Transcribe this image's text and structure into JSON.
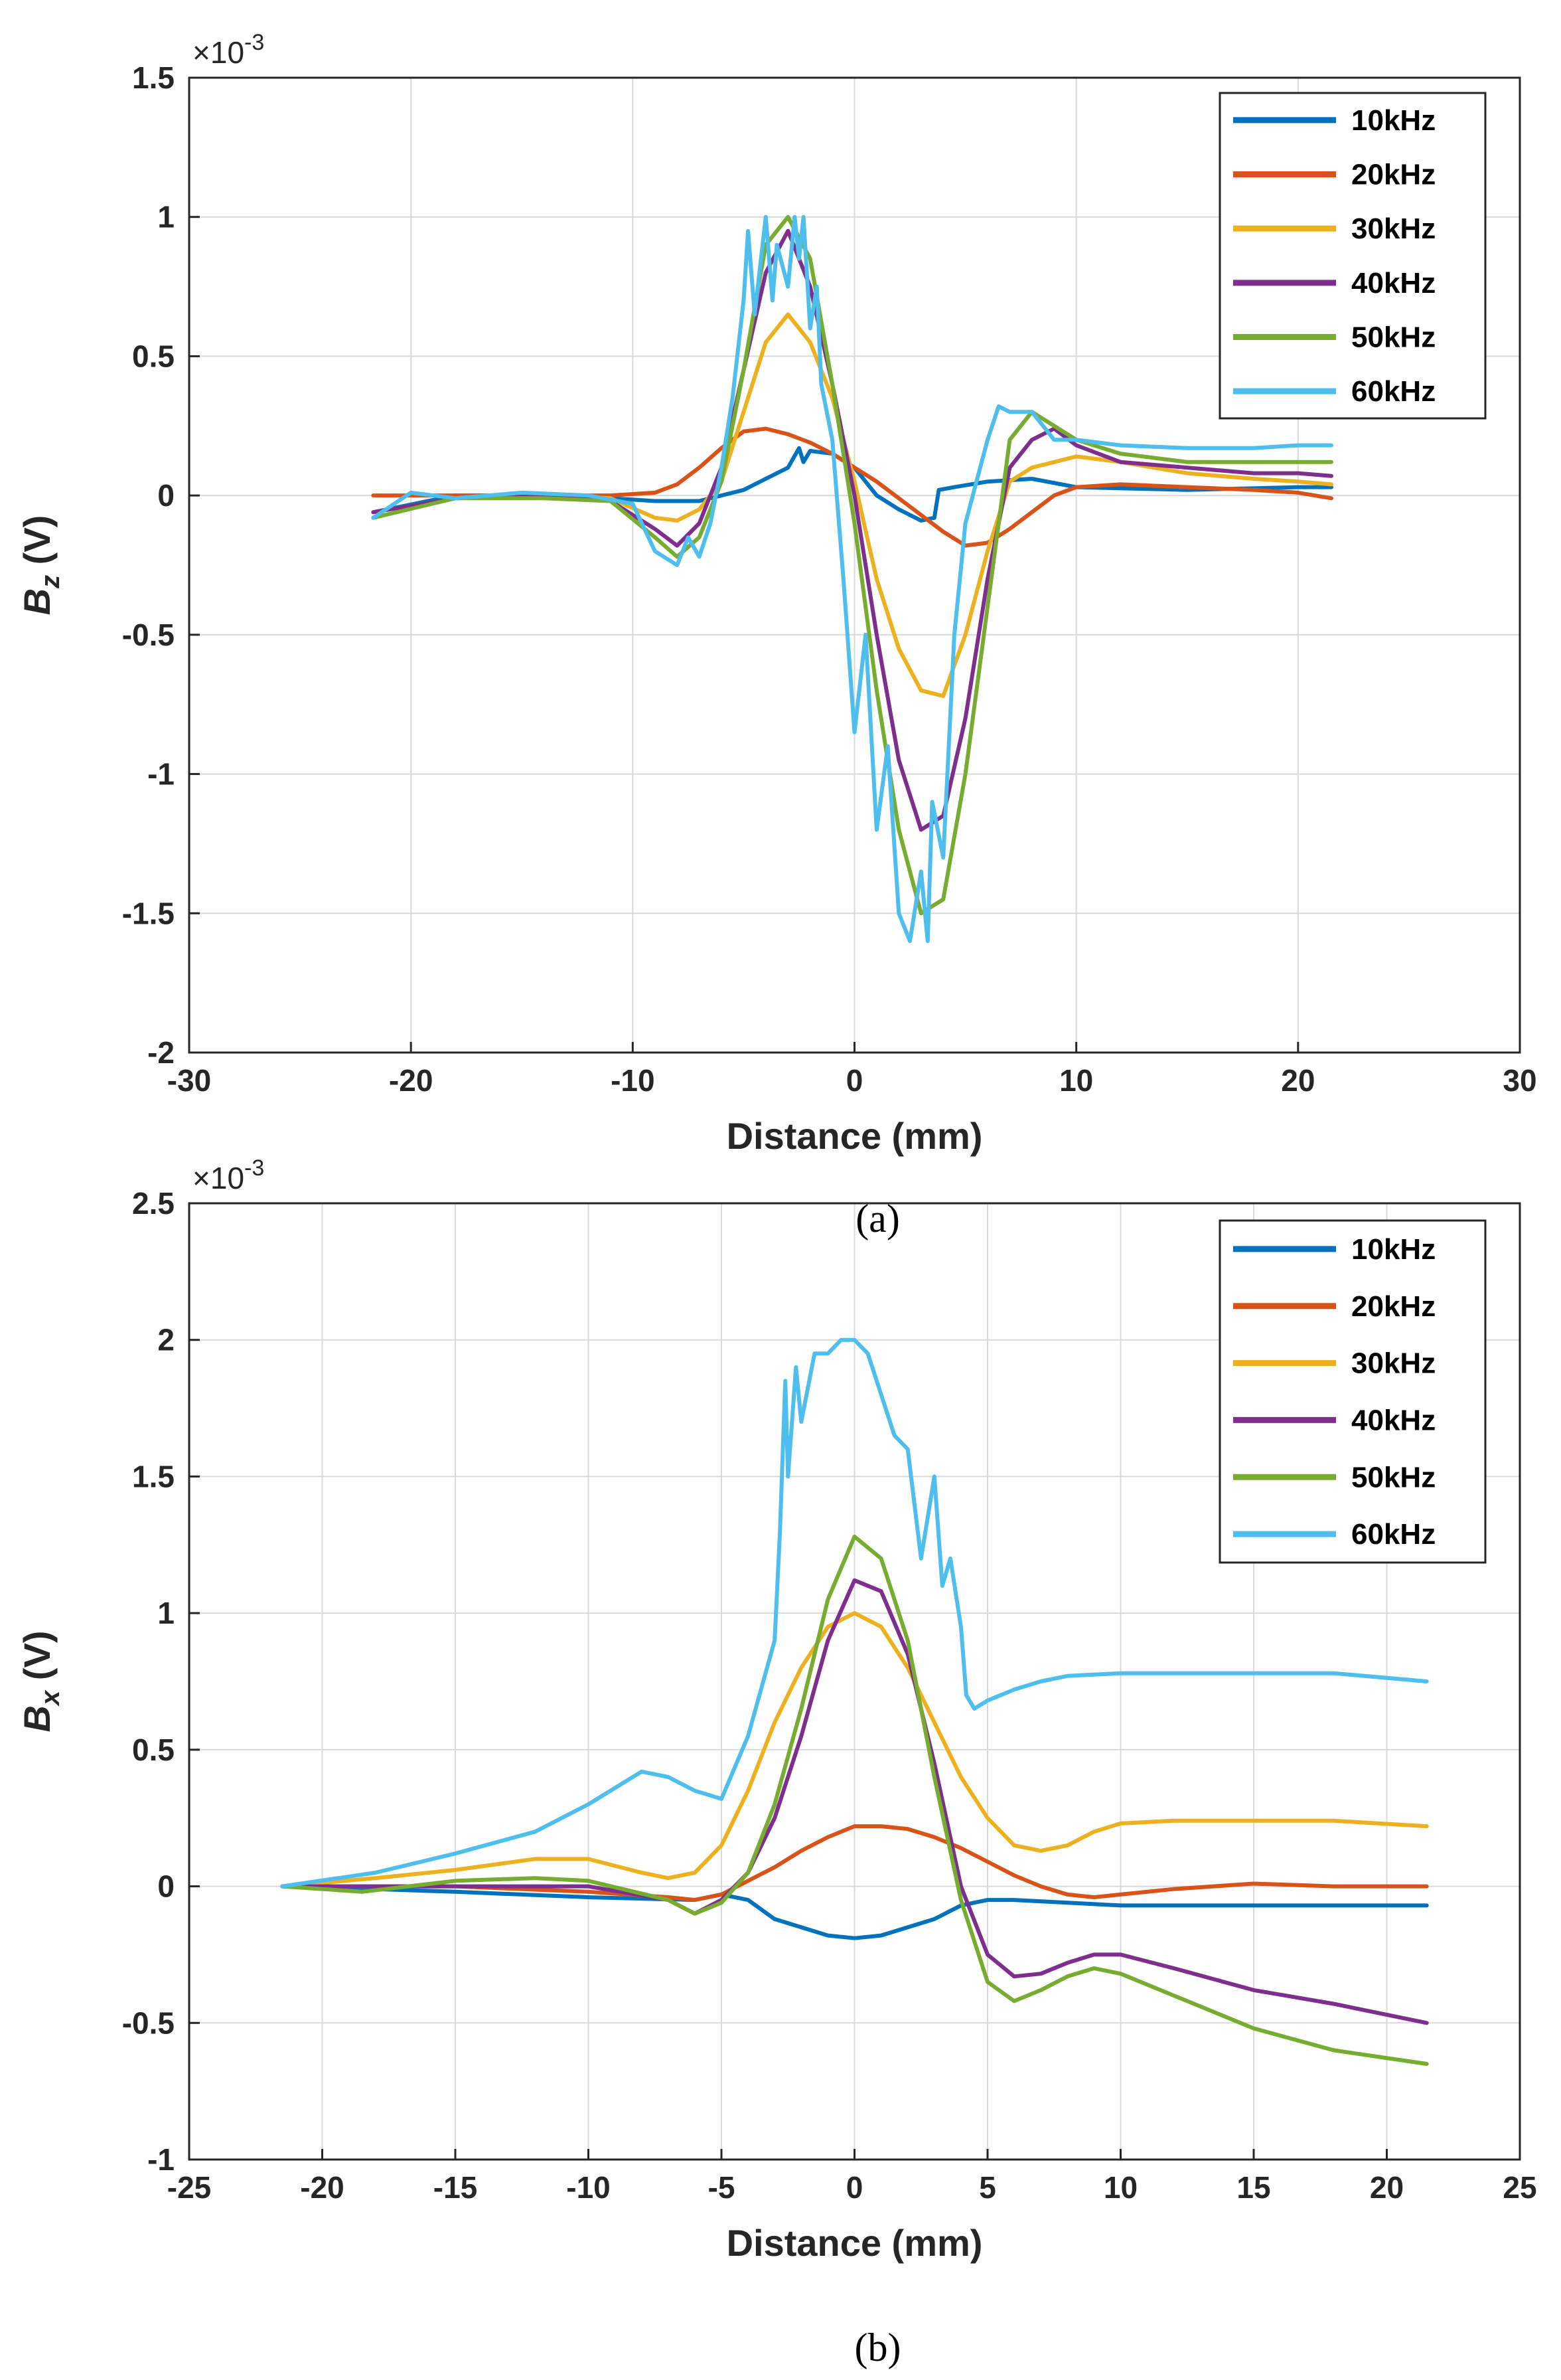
{
  "chart_data": [
    {
      "type": "line",
      "panel_caption": "(a)",
      "xlabel": "Distance (mm)",
      "ylabel_main": "B",
      "ylabel_sub": "z",
      "ylabel_unit": " (V)",
      "exponent_label": "×10",
      "exponent_power": "-3",
      "xlim": [
        -30,
        30
      ],
      "ylim": [
        -2,
        1.5
      ],
      "xticks": [
        -30,
        -20,
        -10,
        0,
        10,
        20,
        30
      ],
      "yticks": [
        -2,
        -1.5,
        -1,
        -0.5,
        0,
        0.5,
        1,
        1.5
      ],
      "xtick_labels": [
        "-30",
        "-20",
        "-10",
        "0",
        "10",
        "20",
        "30"
      ],
      "ytick_labels": [
        "-2",
        "-1.5",
        "-1",
        "-0.5",
        "0",
        "0.5",
        "1",
        "1.5"
      ],
      "grid": true,
      "legend_position": "top-right",
      "series": [
        {
          "name": "10kHz",
          "color": "#0072BD",
          "x": [
            -21.7,
            -18,
            -14,
            -11,
            -9,
            -7,
            -5,
            -3,
            -2.5,
            -2.3,
            -2,
            -1,
            0,
            1,
            2,
            3,
            3.6,
            3.8,
            4.5,
            6,
            8,
            10,
            15,
            20,
            21.5
          ],
          "y": [
            -0.06,
            0,
            0,
            -0.01,
            -0.02,
            -0.02,
            0.02,
            0.1,
            0.17,
            0.12,
            0.16,
            0.15,
            0.1,
            0,
            -0.05,
            -0.09,
            -0.08,
            0.02,
            0.03,
            0.05,
            0.06,
            0.03,
            0.02,
            0.03,
            0.03
          ]
        },
        {
          "name": "20kHz",
          "color": "#D95319",
          "x": [
            -21.7,
            -18,
            -14,
            -11,
            -9,
            -8,
            -7,
            -6,
            -5,
            -4,
            -3,
            -2,
            -1,
            0,
            1,
            2,
            3,
            4,
            5,
            6,
            7,
            8,
            9,
            10,
            12,
            15,
            18,
            20,
            21.5
          ],
          "y": [
            0,
            0,
            0,
            0,
            0.01,
            0.04,
            0.1,
            0.17,
            0.23,
            0.24,
            0.22,
            0.19,
            0.15,
            0.1,
            0.05,
            -0.01,
            -0.07,
            -0.13,
            -0.18,
            -0.17,
            -0.12,
            -0.06,
            0,
            0.03,
            0.04,
            0.03,
            0.02,
            0.01,
            -0.01
          ]
        },
        {
          "name": "30kHz",
          "color": "#EDB120",
          "x": [
            -21.7,
            -18,
            -14,
            -11,
            -9,
            -8,
            -7,
            -6,
            -5,
            -4,
            -3,
            -2,
            -1,
            0,
            1,
            2,
            3,
            4,
            5,
            6,
            7,
            8,
            9,
            10,
            12,
            15,
            18,
            20,
            21.5
          ],
          "y": [
            -0.06,
            -0.01,
            0,
            -0.01,
            -0.08,
            -0.09,
            -0.05,
            0.05,
            0.3,
            0.55,
            0.65,
            0.55,
            0.35,
            0.05,
            -0.3,
            -0.55,
            -0.7,
            -0.72,
            -0.5,
            -0.2,
            0.05,
            0.1,
            0.12,
            0.14,
            0.12,
            0.08,
            0.06,
            0.05,
            0.04
          ]
        },
        {
          "name": "40kHz",
          "color": "#7E2F8E",
          "x": [
            -21.7,
            -18,
            -14,
            -11,
            -9,
            -8,
            -7,
            -6,
            -5,
            -4,
            -3,
            -2,
            -1,
            0,
            1,
            2,
            3,
            4,
            5,
            6,
            7,
            8,
            9,
            10,
            12,
            15,
            18,
            20,
            21.5
          ],
          "y": [
            -0.06,
            -0.01,
            0,
            -0.02,
            -0.12,
            -0.18,
            -0.1,
            0.1,
            0.45,
            0.8,
            0.95,
            0.75,
            0.4,
            0,
            -0.5,
            -0.95,
            -1.2,
            -1.15,
            -0.8,
            -0.3,
            0.1,
            0.2,
            0.24,
            0.18,
            0.12,
            0.1,
            0.08,
            0.08,
            0.07
          ]
        },
        {
          "name": "50kHz",
          "color": "#77AC30",
          "x": [
            -21.7,
            -18,
            -14,
            -11,
            -9,
            -8,
            -7,
            -6,
            -5,
            -4,
            -3,
            -2,
            -1,
            0,
            1,
            2,
            3,
            4,
            5,
            6,
            7,
            8,
            9,
            10,
            12,
            15,
            18,
            20,
            21.5
          ],
          "y": [
            -0.08,
            -0.01,
            -0.01,
            -0.02,
            -0.15,
            -0.22,
            -0.15,
            0.05,
            0.45,
            0.9,
            1.0,
            0.85,
            0.4,
            -0.1,
            -0.7,
            -1.2,
            -1.5,
            -1.45,
            -1.0,
            -0.4,
            0.2,
            0.3,
            0.25,
            0.2,
            0.15,
            0.12,
            0.12,
            0.12,
            0.12
          ]
        },
        {
          "name": "60kHz",
          "color": "#4DBEEE",
          "x": [
            -21.7,
            -20,
            -18,
            -15,
            -12,
            -10,
            -9,
            -8,
            -7.5,
            -7,
            -6.5,
            -6,
            -5.5,
            -5,
            -4.8,
            -4.5,
            -4,
            -3.7,
            -3.5,
            -3,
            -2.7,
            -2.5,
            -2.3,
            -2,
            -1.7,
            -1.5,
            -1,
            -0.5,
            0,
            0.5,
            1,
            1.5,
            2,
            2.5,
            3,
            3.3,
            3.5,
            4,
            4.5,
            5,
            5.5,
            6,
            6.5,
            7,
            8,
            9,
            10,
            12,
            15,
            18,
            20,
            21.5
          ],
          "y": [
            -0.08,
            0.01,
            -0.01,
            0.01,
            0,
            -0.03,
            -0.2,
            -0.25,
            -0.15,
            -0.22,
            -0.1,
            0.1,
            0.35,
            0.7,
            0.95,
            0.65,
            1.0,
            0.7,
            0.9,
            0.75,
            1.0,
            0.85,
            1.0,
            0.6,
            0.75,
            0.4,
            0.2,
            -0.3,
            -0.85,
            -0.5,
            -1.2,
            -0.9,
            -1.5,
            -1.6,
            -1.35,
            -1.6,
            -1.1,
            -1.3,
            -0.5,
            -0.1,
            0.05,
            0.2,
            0.32,
            0.3,
            0.3,
            0.2,
            0.2,
            0.18,
            0.17,
            0.17,
            0.18,
            0.18
          ]
        }
      ]
    },
    {
      "type": "line",
      "panel_caption": "(b)",
      "xlabel": "Distance (mm)",
      "ylabel_main": "B",
      "ylabel_sub": "x",
      "ylabel_unit": " (V)",
      "exponent_label": "×10",
      "exponent_power": "-3",
      "xlim": [
        -25,
        25
      ],
      "ylim": [
        -1,
        2.5
      ],
      "xticks": [
        -25,
        -20,
        -15,
        -10,
        -5,
        0,
        5,
        10,
        15,
        20,
        25
      ],
      "yticks": [
        -1,
        -0.5,
        0,
        0.5,
        1,
        1.5,
        2,
        2.5
      ],
      "xtick_labels": [
        "-25",
        "-20",
        "-15",
        "-10",
        "-5",
        "0",
        "5",
        "10",
        "15",
        "20",
        "25"
      ],
      "ytick_labels": [
        "-1",
        "-0.5",
        "0",
        "0.5",
        "1",
        "1.5",
        "2",
        "2.5"
      ],
      "grid": true,
      "legend_position": "top-right",
      "series": [
        {
          "name": "10kHz",
          "color": "#0072BD",
          "x": [
            -21.5,
            -18,
            -15,
            -10,
            -6,
            -5,
            -4,
            -3,
            -2,
            -1,
            0,
            1,
            2,
            3,
            4,
            5,
            6,
            8,
            10,
            15,
            20,
            21.5
          ],
          "y": [
            0,
            -0.01,
            -0.02,
            -0.04,
            -0.05,
            -0.03,
            -0.05,
            -0.12,
            -0.15,
            -0.18,
            -0.19,
            -0.18,
            -0.15,
            -0.12,
            -0.07,
            -0.05,
            -0.05,
            -0.06,
            -0.07,
            -0.07,
            -0.07,
            -0.07
          ]
        },
        {
          "name": "20kHz",
          "color": "#D95319",
          "x": [
            -21.5,
            -18,
            -15,
            -10,
            -7,
            -6,
            -5,
            -4,
            -3,
            -2,
            -1,
            0,
            1,
            2,
            3,
            4,
            5,
            6,
            7,
            8,
            9,
            10,
            12,
            15,
            18,
            21.5
          ],
          "y": [
            0,
            0,
            0,
            -0.02,
            -0.04,
            -0.05,
            -0.03,
            0.02,
            0.07,
            0.13,
            0.18,
            0.22,
            0.22,
            0.21,
            0.18,
            0.14,
            0.09,
            0.04,
            0,
            -0.03,
            -0.04,
            -0.03,
            -0.01,
            0.01,
            0,
            0
          ]
        },
        {
          "name": "30kHz",
          "color": "#EDB120",
          "x": [
            -21.5,
            -18,
            -15,
            -12,
            -10,
            -8,
            -7,
            -6,
            -5,
            -4,
            -3,
            -2,
            -1,
            0,
            1,
            2,
            3,
            4,
            5,
            6,
            7,
            8,
            9,
            10,
            12,
            15,
            18,
            21.5
          ],
          "y": [
            0,
            0.03,
            0.06,
            0.1,
            0.1,
            0.05,
            0.03,
            0.05,
            0.15,
            0.35,
            0.6,
            0.8,
            0.95,
            1.0,
            0.95,
            0.8,
            0.6,
            0.4,
            0.25,
            0.15,
            0.13,
            0.15,
            0.2,
            0.23,
            0.24,
            0.24,
            0.24,
            0.22
          ]
        },
        {
          "name": "40kHz",
          "color": "#7E2F8E",
          "x": [
            -21.5,
            -18,
            -15,
            -10,
            -7,
            -6,
            -5,
            -4,
            -3,
            -2,
            -1,
            0,
            1,
            2,
            3,
            4,
            5,
            6,
            7,
            8,
            9,
            10,
            12,
            15,
            18,
            21.5
          ],
          "y": [
            0,
            0,
            0,
            0,
            -0.05,
            -0.1,
            -0.05,
            0.05,
            0.25,
            0.55,
            0.9,
            1.12,
            1.08,
            0.85,
            0.45,
            0.0,
            -0.25,
            -0.33,
            -0.32,
            -0.28,
            -0.25,
            -0.25,
            -0.3,
            -0.38,
            -0.43,
            -0.5
          ]
        },
        {
          "name": "50kHz",
          "color": "#77AC30",
          "x": [
            -21.5,
            -18.5,
            -15,
            -12,
            -10,
            -7,
            -6,
            -5,
            -4,
            -3,
            -2,
            -1,
            0,
            1,
            2,
            3,
            4,
            5,
            6,
            7,
            8,
            9,
            10,
            12,
            15,
            18,
            21.5
          ],
          "y": [
            0,
            -0.02,
            0.02,
            0.03,
            0.02,
            -0.05,
            -0.1,
            -0.06,
            0.05,
            0.3,
            0.65,
            1.05,
            1.28,
            1.2,
            0.9,
            0.4,
            -0.05,
            -0.35,
            -0.42,
            -0.38,
            -0.33,
            -0.3,
            -0.32,
            -0.4,
            -0.52,
            -0.6,
            -0.65
          ]
        },
        {
          "name": "60kHz",
          "color": "#4DBEEE",
          "x": [
            -21.5,
            -18,
            -15,
            -12,
            -10,
            -8,
            -7,
            -6,
            -5,
            -4,
            -3,
            -2.8,
            -2.6,
            -2.5,
            -2.2,
            -2,
            -1.5,
            -1,
            -0.5,
            0,
            0.5,
            1,
            1.5,
            2,
            2.5,
            3,
            3.3,
            3.6,
            4,
            4.2,
            4.5,
            5,
            6,
            7,
            8,
            10,
            12,
            15,
            18,
            21.5
          ],
          "y": [
            0,
            0.05,
            0.12,
            0.2,
            0.3,
            0.42,
            0.4,
            0.35,
            0.32,
            0.55,
            0.9,
            1.3,
            1.85,
            1.5,
            1.9,
            1.7,
            1.95,
            1.95,
            2.0,
            2.0,
            1.95,
            1.8,
            1.65,
            1.6,
            1.2,
            1.5,
            1.1,
            1.2,
            0.95,
            0.7,
            0.65,
            0.68,
            0.72,
            0.75,
            0.77,
            0.78,
            0.78,
            0.78,
            0.78,
            0.75
          ]
        }
      ]
    }
  ]
}
